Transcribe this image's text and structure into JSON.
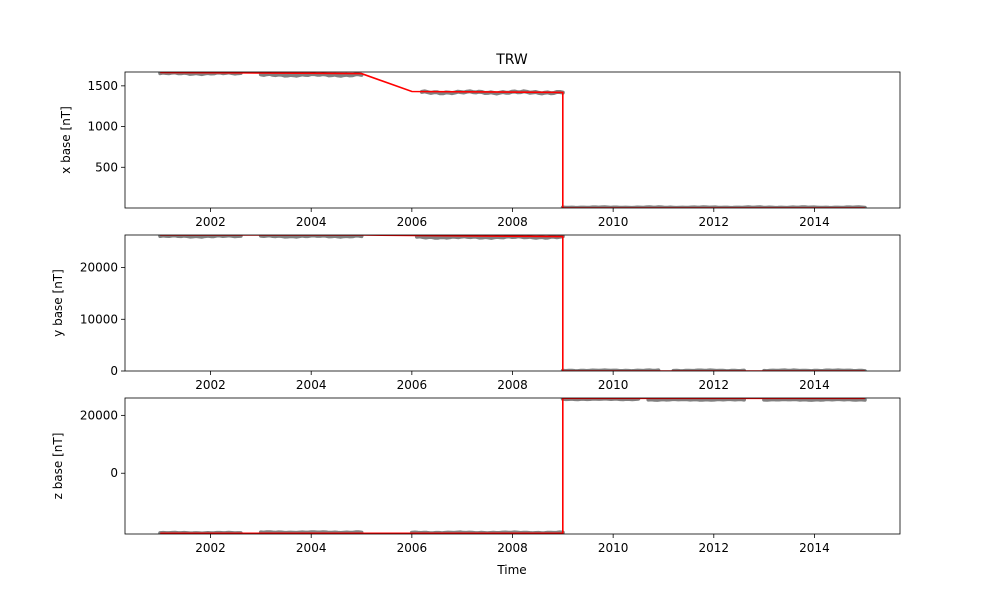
{
  "chart_data": {
    "type": "line",
    "title": "TRW",
    "xlabel": "Time",
    "colors": {
      "raw": "#808080",
      "baseline": "#ff0000"
    },
    "xlim": [
      2000.3,
      2015.7
    ],
    "xticks": [
      {
        "value": 2002,
        "label": "2002"
      },
      {
        "value": 2004,
        "label": "2004"
      },
      {
        "value": 2006,
        "label": "2006"
      },
      {
        "value": 2008,
        "label": "2008"
      },
      {
        "value": 2010,
        "label": "2010"
      },
      {
        "value": 2012,
        "label": "2012"
      },
      {
        "value": 2014,
        "label": "2014"
      }
    ],
    "grid": false,
    "subplots": [
      {
        "id": "x",
        "ylabel": "x base [nT]",
        "ylim": [
          0,
          1670
        ],
        "yticks": [
          {
            "value": 500,
            "label": "500"
          },
          {
            "value": 1000,
            "label": "1000"
          },
          {
            "value": 1500,
            "label": "1500"
          }
        ],
        "raw": [
          {
            "x": [
              2001.0,
              2002.6
            ],
            "y": 1655,
            "spread": 22
          },
          {
            "x": [
              2003.0,
              2005.0
            ],
            "y": 1635,
            "spread": 25
          },
          {
            "x": [
              2006.2,
              2009.0
            ],
            "y": 1420,
            "spread": 28
          },
          {
            "x": [
              2009.0,
              2015.0
            ],
            "y": 5,
            "spread": 8
          }
        ],
        "baseline": {
          "x": [
            2001.0,
            2002.6,
            2002.6,
            2005.0,
            2006.0,
            2009.0,
            2009.0,
            2015.0
          ],
          "y": [
            1665,
            1660,
            1660,
            1650,
            1430,
            1420,
            0,
            0
          ]
        }
      },
      {
        "id": "y",
        "ylabel": "y base [nT]",
        "ylim": [
          0,
          26300
        ],
        "yticks": [
          {
            "value": 0,
            "label": "0"
          },
          {
            "value": 10000,
            "label": "10000"
          },
          {
            "value": 20000,
            "label": "20000"
          }
        ],
        "raw": [
          {
            "x": [
              2001.0,
              2002.6
            ],
            "y": 26100,
            "spread": 280
          },
          {
            "x": [
              2003.0,
              2005.0
            ],
            "y": 26100,
            "spread": 280
          },
          {
            "x": [
              2006.1,
              2009.0
            ],
            "y": 25900,
            "spread": 320
          },
          {
            "x": [
              2009.0,
              2010.9
            ],
            "y": 50,
            "spread": 150
          },
          {
            "x": [
              2011.2,
              2012.6
            ],
            "y": 50,
            "spread": 150
          },
          {
            "x": [
              2013.0,
              2015.0
            ],
            "y": 50,
            "spread": 150
          }
        ],
        "baseline": {
          "x": [
            2001.0,
            2005.0,
            2009.0,
            2009.0,
            2015.0
          ],
          "y": [
            26300,
            26300,
            26000,
            0,
            0
          ]
        }
      },
      {
        "id": "z",
        "ylabel": "z base [nT]",
        "ylim": [
          -21000,
          26000
        ],
        "yticks": [
          {
            "value": 0,
            "label": "0"
          },
          {
            "value": 20000,
            "label": "20000"
          }
        ],
        "raw": [
          {
            "x": [
              2001.0,
              2002.6
            ],
            "y": -20700,
            "spread": 260
          },
          {
            "x": [
              2003.0,
              2005.0
            ],
            "y": -20500,
            "spread": 300
          },
          {
            "x": [
              2006.0,
              2009.0
            ],
            "y": -20600,
            "spread": 300
          },
          {
            "x": [
              2009.0,
              2010.5
            ],
            "y": 25700,
            "spread": 280
          },
          {
            "x": [
              2010.7,
              2012.6
            ],
            "y": 25500,
            "spread": 300
          },
          {
            "x": [
              2013.0,
              2015.0
            ],
            "y": 25500,
            "spread": 300
          }
        ],
        "baseline": {
          "x": [
            2001.0,
            2009.0,
            2009.0,
            2015.0
          ],
          "y": [
            -20750,
            -20750,
            25900,
            25900
          ]
        }
      }
    ]
  }
}
